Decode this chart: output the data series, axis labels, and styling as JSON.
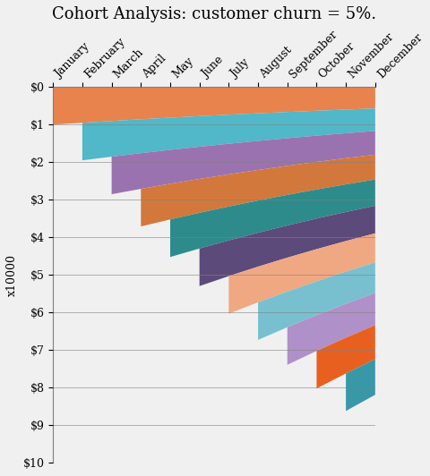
{
  "title": "Cohort Analysis: customer churn = 5%.",
  "ylabel": "x10000",
  "months": [
    "January",
    "February",
    "March",
    "April",
    "May",
    "June",
    "July",
    "August",
    "September",
    "October",
    "November",
    "December"
  ],
  "churn_rate": 0.05,
  "initial_value": 10000,
  "n_cohorts": 12,
  "colors": [
    "#E8834E",
    "#50B8C8",
    "#9B72B0",
    "#D2783C",
    "#2E8B8B",
    "#5C4A7A",
    "#F0A882",
    "#78C0D0",
    "#B090C8",
    "#E86020",
    "#3898A8",
    "#7868A0"
  ],
  "ytick_labels": [
    "$0",
    "$1",
    "$2",
    "$3",
    "$4",
    "$5",
    "$6",
    "$7",
    "$8",
    "$9",
    "$10"
  ],
  "background_color": "#f0f0f0",
  "title_fontsize": 13,
  "axis_label_fontsize": 9,
  "tick_fontsize": 9
}
